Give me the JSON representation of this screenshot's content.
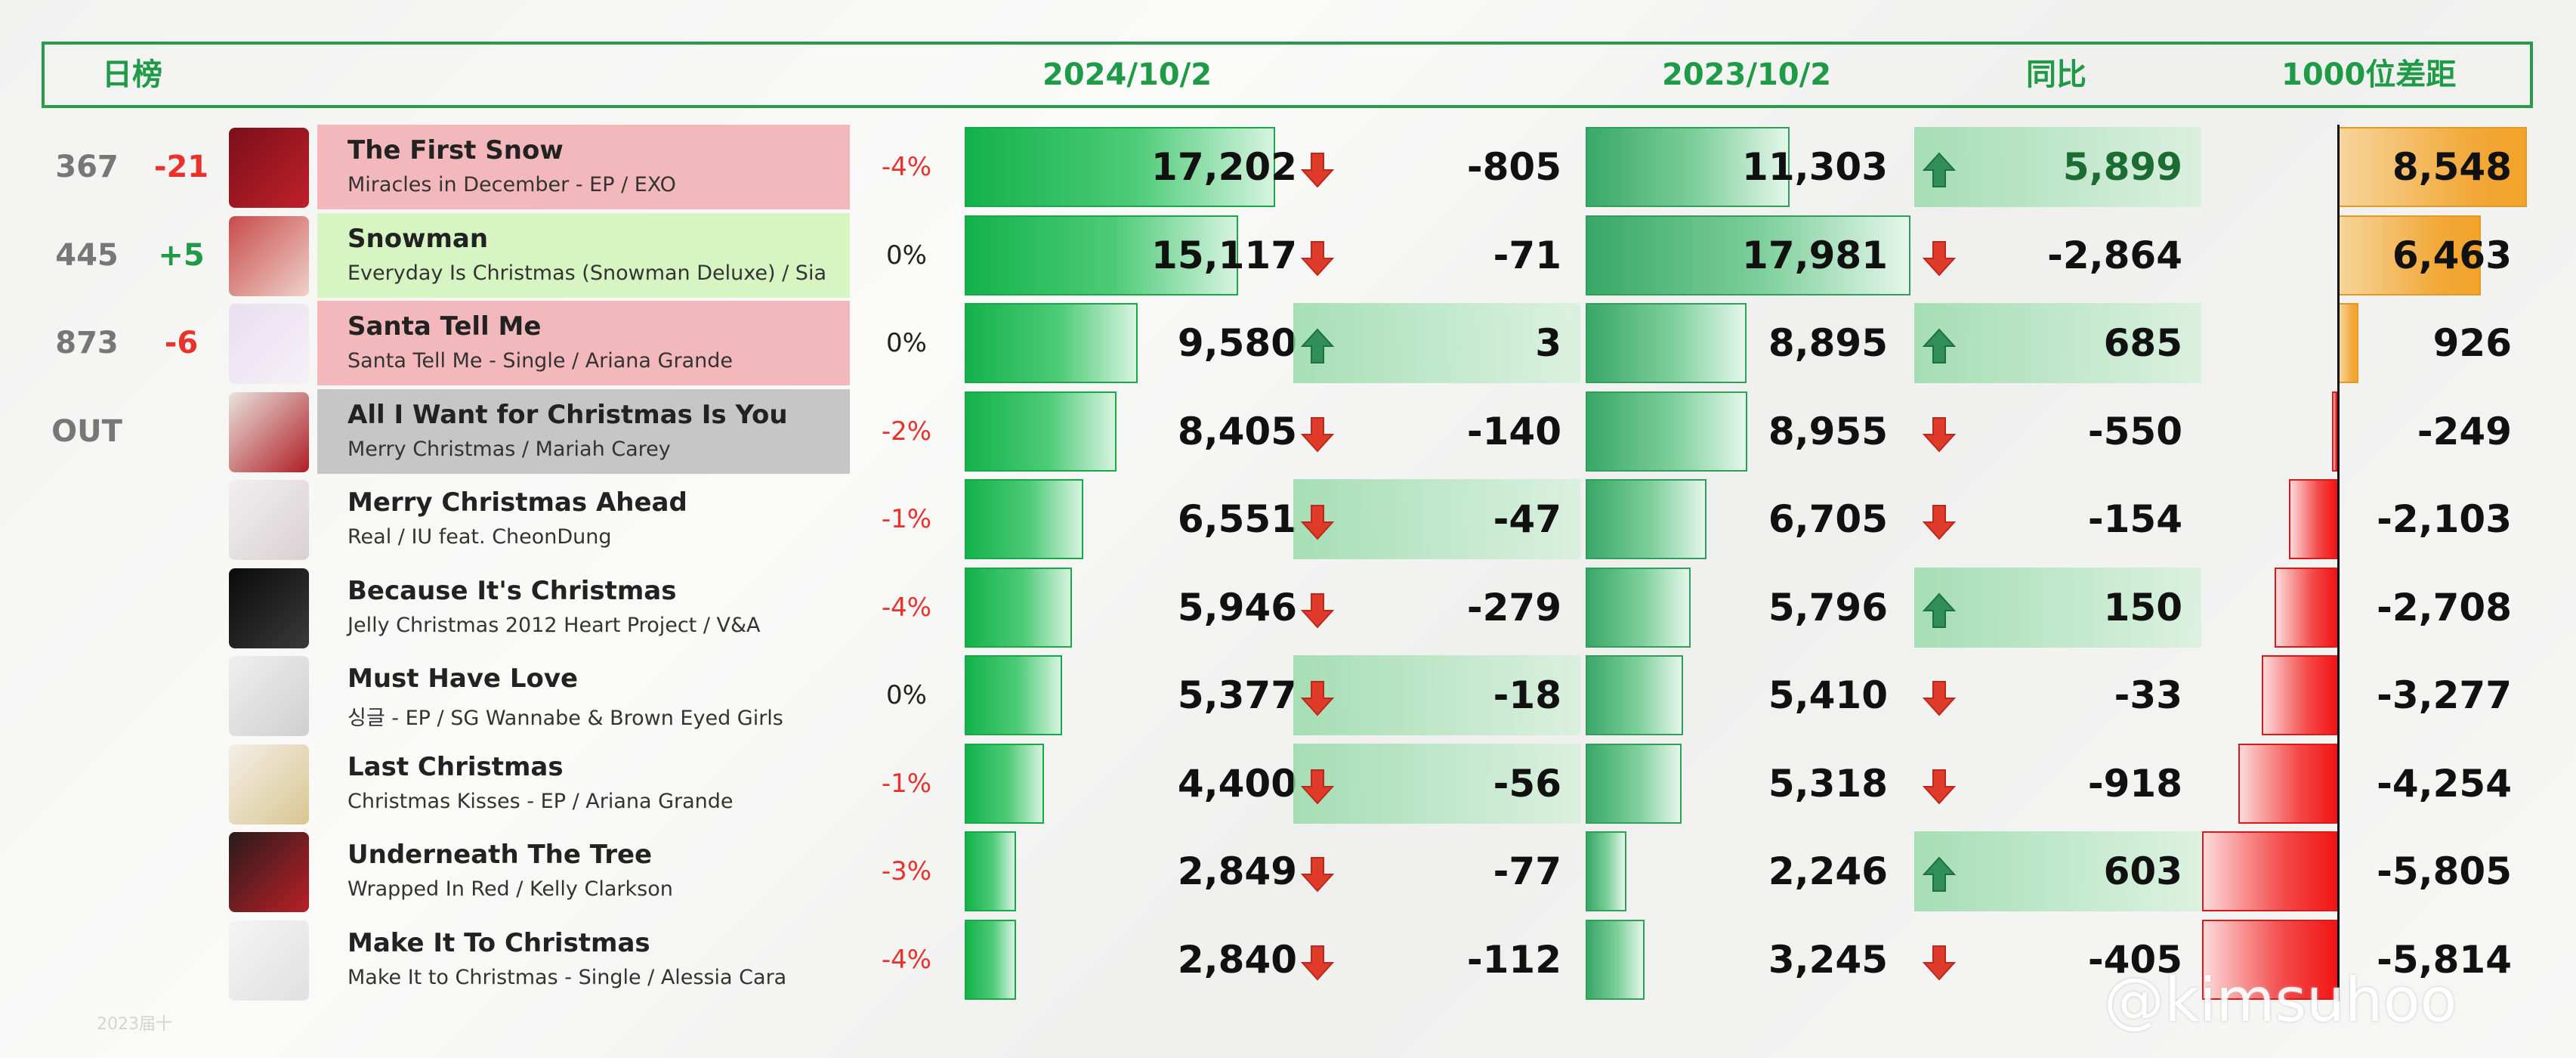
{
  "header": {
    "chart_label": "日榜",
    "date_current": "2024/10/2",
    "date_prev": "2023/10/2",
    "yoy_label": "同比",
    "gap_label": "1000位差距"
  },
  "watermark": "@kimsuhoo",
  "watermark_small": "2023届十",
  "colors": {
    "green": "#1f9a47",
    "red": "#e8322b",
    "orange": "#f2a93a",
    "pink_row": "#f3b8bc",
    "lime_row": "#d6f5c2",
    "gray_row": "#c6c6c6"
  },
  "chart_data": {
    "type": "table",
    "columns": [
      "日榜",
      "2024/10/2",
      "2023/10/2",
      "同比",
      "1000位差距"
    ],
    "rows": [
      {
        "rank": "367",
        "rank_change": "-21",
        "title": "The First Snow",
        "subtitle": "Miracles in December - EP / EXO",
        "pct": "-4%",
        "current": 17202,
        "current_label": "17,202",
        "daily_change": -805,
        "daily_change_label": "-805",
        "prev": 11303,
        "prev_label": "11,303",
        "yoy": 5899,
        "yoy_label": "5,899",
        "gap": 8548,
        "gap_label": "8,548"
      },
      {
        "rank": "445",
        "rank_change": "+5",
        "title": "Snowman",
        "subtitle": "Everyday Is Christmas (Snowman Deluxe) / Sia",
        "pct": "0%",
        "current": 15117,
        "current_label": "15,117",
        "daily_change": -71,
        "daily_change_label": "-71",
        "prev": 17981,
        "prev_label": "17,981",
        "yoy": -2864,
        "yoy_label": "-2,864",
        "gap": 6463,
        "gap_label": "6,463"
      },
      {
        "rank": "873",
        "rank_change": "-6",
        "title": "Santa Tell Me",
        "subtitle": "Santa Tell Me - Single / Ariana Grande",
        "pct": "0%",
        "current": 9580,
        "current_label": "9,580",
        "daily_change": 3,
        "daily_change_label": "3",
        "prev": 8895,
        "prev_label": "8,895",
        "yoy": 685,
        "yoy_label": "685",
        "gap": 926,
        "gap_label": "926"
      },
      {
        "rank": "OUT",
        "rank_change": "",
        "title": "All I Want for Christmas Is You",
        "subtitle": "Merry Christmas / Mariah Carey",
        "pct": "-2%",
        "current": 8405,
        "current_label": "8,405",
        "daily_change": -140,
        "daily_change_label": "-140",
        "prev": 8955,
        "prev_label": "8,955",
        "yoy": -550,
        "yoy_label": "-550",
        "gap": -249,
        "gap_label": "-249"
      },
      {
        "rank": "",
        "rank_change": "",
        "title": "Merry Christmas Ahead",
        "subtitle": "Real / IU feat. CheonDung",
        "pct": "-1%",
        "current": 6551,
        "current_label": "6,551",
        "daily_change": -47,
        "daily_change_label": "-47",
        "prev": 6705,
        "prev_label": "6,705",
        "yoy": -154,
        "yoy_label": "-154",
        "gap": -2103,
        "gap_label": "-2,103"
      },
      {
        "rank": "",
        "rank_change": "",
        "title": "Because It's Christmas",
        "subtitle": "Jelly Christmas 2012 Heart Project  / V&A",
        "pct": "-4%",
        "current": 5946,
        "current_label": "5,946",
        "daily_change": -279,
        "daily_change_label": "-279",
        "prev": 5796,
        "prev_label": "5,796",
        "yoy": 150,
        "yoy_label": "150",
        "gap": -2708,
        "gap_label": "-2,708"
      },
      {
        "rank": "",
        "rank_change": "",
        "title": "Must Have Love",
        "subtitle": "싱글 - EP / SG Wannabe & Brown Eyed Girls",
        "pct": "0%",
        "current": 5377,
        "current_label": "5,377",
        "daily_change": -18,
        "daily_change_label": "-18",
        "prev": 5410,
        "prev_label": "5,410",
        "yoy": -33,
        "yoy_label": "-33",
        "gap": -3277,
        "gap_label": "-3,277"
      },
      {
        "rank": "",
        "rank_change": "",
        "title": "Last Christmas",
        "subtitle": "Christmas Kisses - EP / Ariana Grande",
        "pct": "-1%",
        "current": 4400,
        "current_label": "4,400",
        "daily_change": -56,
        "daily_change_label": "-56",
        "prev": 5318,
        "prev_label": "5,318",
        "yoy": -918,
        "yoy_label": "-918",
        "gap": -4254,
        "gap_label": "-4,254"
      },
      {
        "rank": "",
        "rank_change": "",
        "title": "Underneath The Tree",
        "subtitle": "Wrapped In Red / Kelly Clarkson",
        "pct": "-3%",
        "current": 2849,
        "current_label": "2,849",
        "daily_change": -77,
        "daily_change_label": "-77",
        "prev": 2246,
        "prev_label": "2,246",
        "yoy": 603,
        "yoy_label": "603",
        "gap": -5805,
        "gap_label": "-5,805"
      },
      {
        "rank": "",
        "rank_change": "",
        "title": "Make It To Christmas",
        "subtitle": "Make It to Christmas - Single / Alessia Cara",
        "pct": "-4%",
        "current": 2840,
        "current_label": "2,840",
        "daily_change": -112,
        "daily_change_label": "-112",
        "prev": 3245,
        "prev_label": "3,245",
        "yoy": -405,
        "yoy_label": "-405",
        "gap": -5814,
        "gap_label": "-5,814"
      }
    ]
  }
}
